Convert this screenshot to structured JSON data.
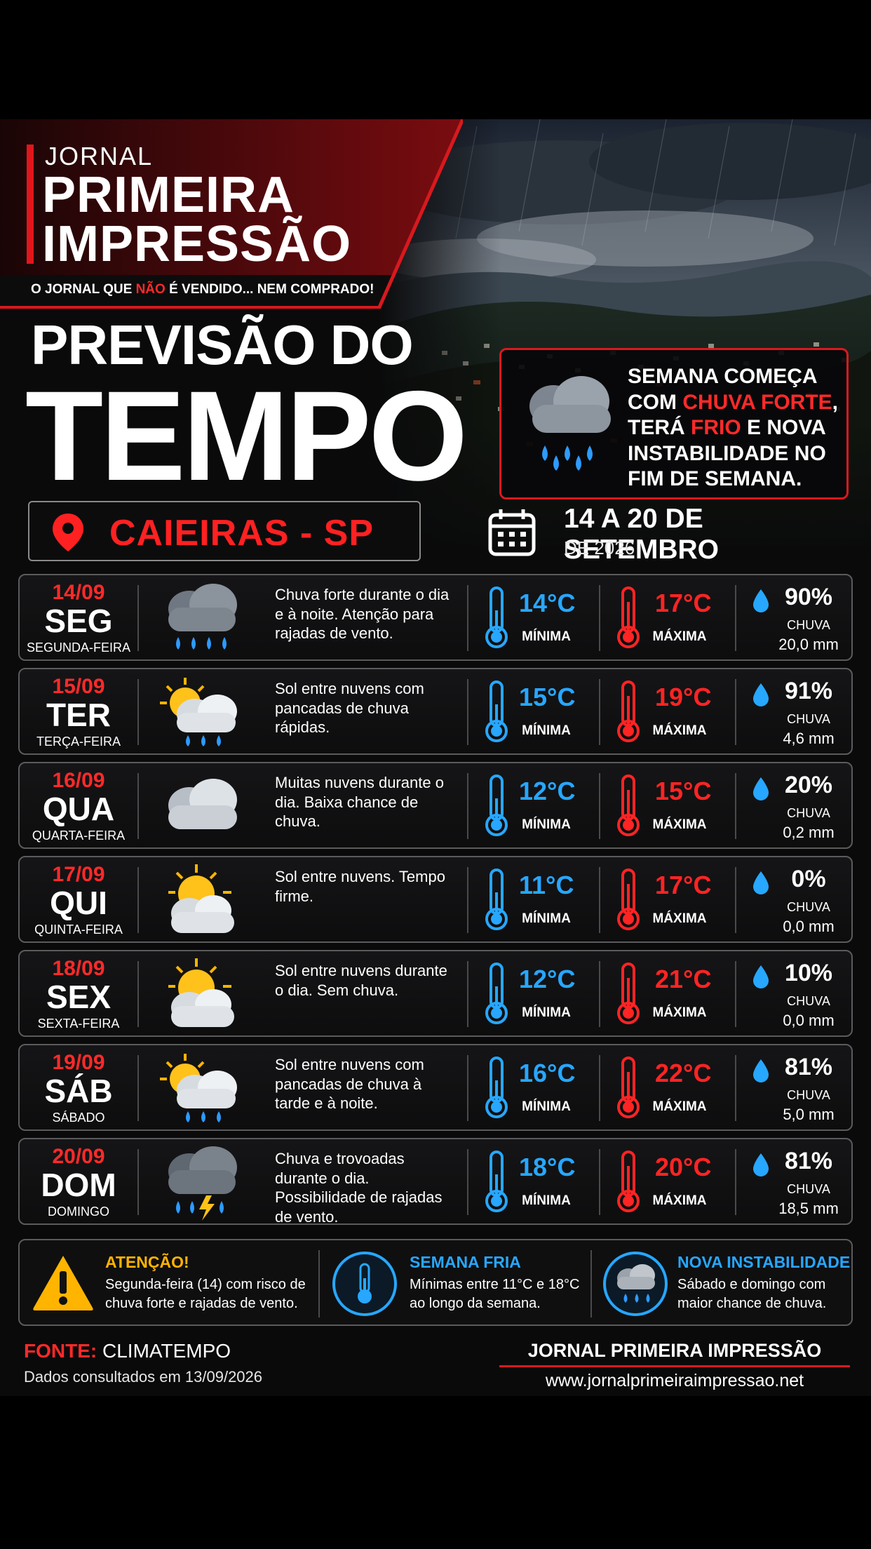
{
  "masthead": {
    "small": "JORNAL",
    "line1": "PRIMEIRA",
    "line2": "IMPRESSÃO",
    "tagline_a": "O JORNAL QUE ",
    "tagline_red": "NÃO",
    "tagline_b": " É VENDIDO... NEM COMPRADO!"
  },
  "title": {
    "line1": "PREVISÃO DO",
    "line2": "TEMPO"
  },
  "highlight": {
    "p1": "SEMANA COMEÇA COM ",
    "red1": "CHUVA FORTE",
    "p2": ", TERÁ ",
    "red2": "FRIO",
    "p3": " E NOVA INSTABILIDADE NO FIM DE SEMANA."
  },
  "location": "CAIEIRAS - SP",
  "period": {
    "line1": "14 A 20 DE SETEMBRO",
    "line2": "DE 2026"
  },
  "labels": {
    "min": "MÍNIMA",
    "max": "MÁXIMA",
    "rain": "CHUVA"
  },
  "days": [
    {
      "date": "14/09",
      "abbr": "SEG",
      "full": "SEGUNDA-FEIRA",
      "icon": "heavy-rain-icon",
      "desc": "Chuva forte durante o dia e à noite. Atenção para rajadas de vento.",
      "min": "14°C",
      "max": "17°C",
      "pct": "90%",
      "mm": "20,0 mm"
    },
    {
      "date": "15/09",
      "abbr": "TER",
      "full": "TERÇA-FEIRA",
      "icon": "sun-cloud-rain-icon",
      "desc": "Sol entre nuvens com pancadas de chuva rápidas.",
      "min": "15°C",
      "max": "19°C",
      "pct": "91%",
      "mm": "4,6 mm"
    },
    {
      "date": "16/09",
      "abbr": "QUA",
      "full": "QUARTA-FEIRA",
      "icon": "cloudy-icon",
      "desc": "Muitas nuvens durante o dia. Baixa chance de chuva.",
      "min": "12°C",
      "max": "15°C",
      "pct": "20%",
      "mm": "0,2 mm"
    },
    {
      "date": "17/09",
      "abbr": "QUI",
      "full": "QUINTA-FEIRA",
      "icon": "sun-cloud-icon",
      "desc": "Sol entre nuvens. Tempo firme.",
      "min": "11°C",
      "max": "17°C",
      "pct": "0%",
      "mm": "0,0 mm"
    },
    {
      "date": "18/09",
      "abbr": "SEX",
      "full": "SEXTA-FEIRA",
      "icon": "sun-cloud-icon",
      "desc": "Sol entre nuvens durante o dia. Sem chuva.",
      "min": "12°C",
      "max": "21°C",
      "pct": "10%",
      "mm": "0,0 mm"
    },
    {
      "date": "19/09",
      "abbr": "SÁB",
      "full": "SÁBADO",
      "icon": "sun-cloud-rain-icon",
      "desc": "Sol entre nuvens com pancadas de chuva à tarde e à noite.",
      "min": "16°C",
      "max": "22°C",
      "pct": "81%",
      "mm": "5,0 mm"
    },
    {
      "date": "20/09",
      "abbr": "DOM",
      "full": "DOMINGO",
      "icon": "thunderstorm-icon",
      "desc": "Chuva e trovoadas durante o dia. Possibilidade de rajadas de vento.",
      "min": "18°C",
      "max": "20°C",
      "pct": "81%",
      "mm": "18,5 mm"
    }
  ],
  "notes": [
    {
      "icon": "warning-icon",
      "title": "ATENÇÃO!",
      "text": "Segunda-feira (14) com risco de chuva forte e rajadas de vento.",
      "color": "#ffb400"
    },
    {
      "icon": "thermometer-icon",
      "title": "SEMANA FRIA",
      "text": "Mínimas entre 11°C e 18°C ao longo da semana.",
      "color": "#27a7ff"
    },
    {
      "icon": "rain-cloud-icon",
      "title": "NOVA INSTABILIDADE",
      "text": "Sábado e domingo com maior chance de chuva.",
      "color": "#27a7ff"
    }
  ],
  "footer": {
    "source_label": "FONTE:",
    "source": " CLIMATEMPO",
    "consulted": "Dados consultados em 13/09/2026",
    "brand": "JORNAL PRIMEIRA IMPRESSÃO",
    "site": "www.jornalprimeiraimpressao.net"
  },
  "colors": {
    "accent_red": "#e1161b",
    "temp_min": "#27a7ff",
    "temp_max": "#ff2424",
    "warning": "#ffb400"
  }
}
